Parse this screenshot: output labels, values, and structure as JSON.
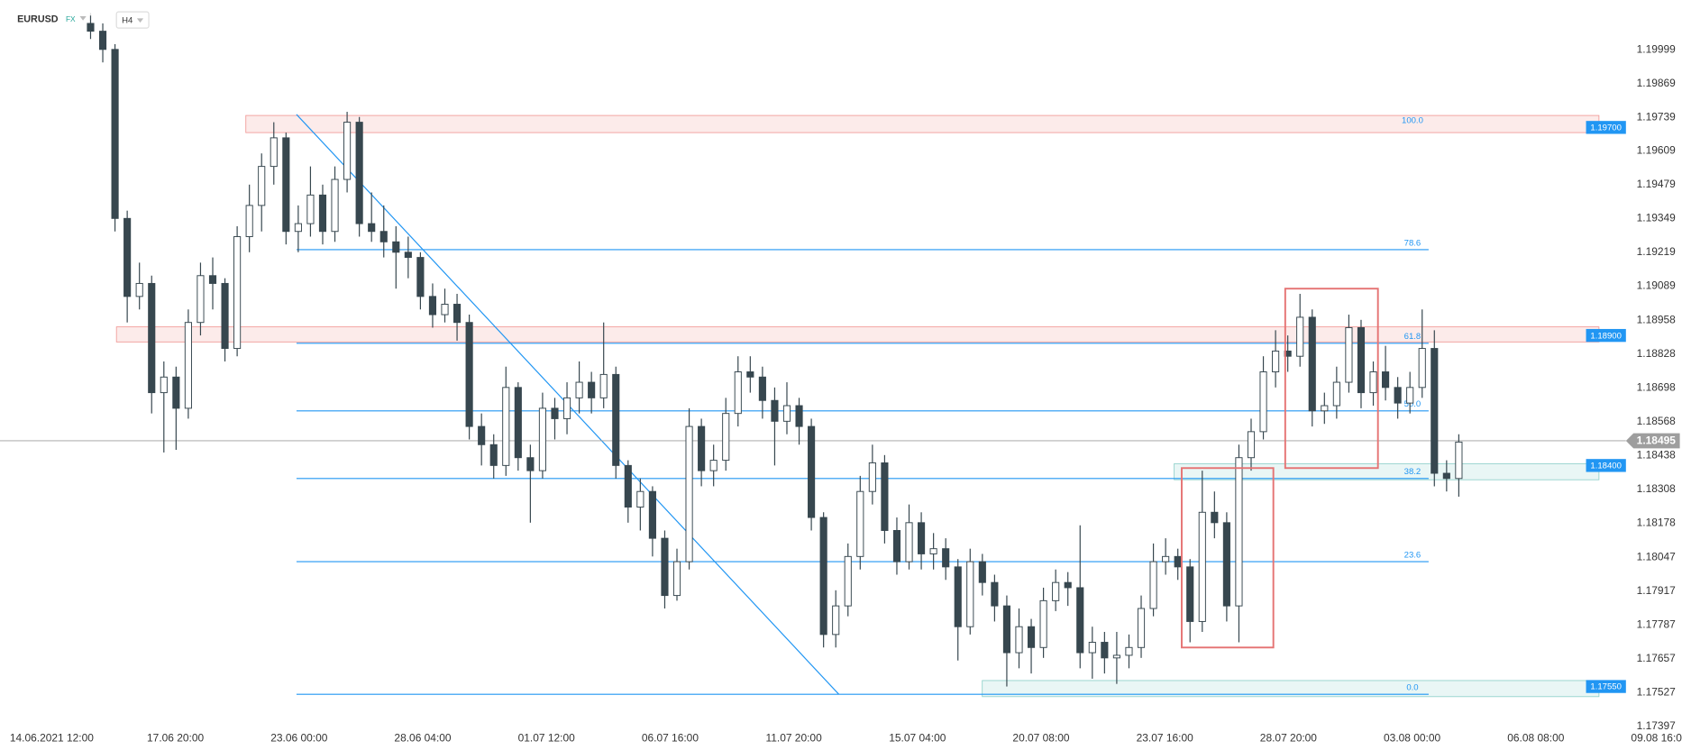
{
  "header": {
    "symbol": "EURUSD",
    "market": "FX",
    "interval": "H4"
  },
  "chart_data": {
    "type": "candlestick",
    "ylim": [
      1.1739,
      1.2019
    ],
    "yticks": [
      1.19999,
      1.19869,
      1.19739,
      1.19609,
      1.19479,
      1.19349,
      1.19219,
      1.19089,
      1.18958,
      1.18828,
      1.18698,
      1.18568,
      1.18438,
      1.18308,
      1.18178,
      1.18047,
      1.17917,
      1.17787,
      1.17657,
      1.17527,
      1.17397
    ],
    "xtick_labels": [
      "14.06.2021 12:00",
      "17.06 20:00",
      "23.06 00:00",
      "28.06 04:00",
      "01.07 12:00",
      "06.07 16:00",
      "11.07 20:00",
      "15.07 04:00",
      "20.07 08:00",
      "23.07 16:00",
      "28.07 20:00",
      "03.08 00:00",
      "06.08 08:00",
      "09.08 16:00"
    ],
    "up_color": "#ffffff",
    "down_color": "#37474f",
    "candles": [
      [
        1.201,
        1.2013,
        1.2004,
        1.2007
      ],
      [
        1.2007,
        1.201,
        1.1995,
        1.2
      ],
      [
        1.2,
        1.2002,
        1.193,
        1.1935
      ],
      [
        1.1935,
        1.1938,
        1.1895,
        1.1905
      ],
      [
        1.1905,
        1.1918,
        1.19,
        1.191
      ],
      [
        1.191,
        1.1913,
        1.186,
        1.1868
      ],
      [
        1.1868,
        1.188,
        1.1845,
        1.1874
      ],
      [
        1.1874,
        1.1878,
        1.1846,
        1.1862
      ],
      [
        1.1862,
        1.19,
        1.1858,
        1.1895
      ],
      [
        1.1895,
        1.1918,
        1.189,
        1.1913
      ],
      [
        1.1913,
        1.192,
        1.19,
        1.191
      ],
      [
        1.191,
        1.1912,
        1.188,
        1.1885
      ],
      [
        1.1885,
        1.1932,
        1.1882,
        1.1928
      ],
      [
        1.1928,
        1.1948,
        1.1922,
        1.194
      ],
      [
        1.194,
        1.196,
        1.193,
        1.1955
      ],
      [
        1.1955,
        1.1972,
        1.1948,
        1.1966
      ],
      [
        1.1966,
        1.1968,
        1.1925,
        1.193
      ],
      [
        1.193,
        1.194,
        1.1922,
        1.1933
      ],
      [
        1.1933,
        1.1955,
        1.1928,
        1.1944
      ],
      [
        1.1944,
        1.1948,
        1.1925,
        1.193
      ],
      [
        1.193,
        1.1955,
        1.1926,
        1.195
      ],
      [
        1.195,
        1.1976,
        1.1945,
        1.1972
      ],
      [
        1.1972,
        1.1974,
        1.1928,
        1.1933
      ],
      [
        1.1933,
        1.1945,
        1.1926,
        1.193
      ],
      [
        1.193,
        1.194,
        1.192,
        1.1926
      ],
      [
        1.1926,
        1.1932,
        1.1908,
        1.1922
      ],
      [
        1.1922,
        1.1928,
        1.1912,
        1.192
      ],
      [
        1.192,
        1.1922,
        1.19,
        1.1905
      ],
      [
        1.1905,
        1.191,
        1.1893,
        1.1898
      ],
      [
        1.1898,
        1.1908,
        1.1895,
        1.1902
      ],
      [
        1.1902,
        1.1906,
        1.1888,
        1.1895
      ],
      [
        1.1895,
        1.1898,
        1.185,
        1.1855
      ],
      [
        1.1855,
        1.186,
        1.184,
        1.1848
      ],
      [
        1.1848,
        1.1852,
        1.1835,
        1.184
      ],
      [
        1.184,
        1.1878,
        1.1836,
        1.187
      ],
      [
        1.187,
        1.1872,
        1.1838,
        1.1843
      ],
      [
        1.1843,
        1.1848,
        1.1818,
        1.1838
      ],
      [
        1.1838,
        1.1868,
        1.1835,
        1.1862
      ],
      [
        1.1862,
        1.1866,
        1.185,
        1.1858
      ],
      [
        1.1858,
        1.1872,
        1.1852,
        1.1866
      ],
      [
        1.1866,
        1.188,
        1.186,
        1.1872
      ],
      [
        1.1872,
        1.1876,
        1.186,
        1.1866
      ],
      [
        1.1866,
        1.1895,
        1.1862,
        1.1875
      ],
      [
        1.1875,
        1.1878,
        1.1835,
        1.184
      ],
      [
        1.184,
        1.1842,
        1.1818,
        1.1824
      ],
      [
        1.1824,
        1.1835,
        1.1815,
        1.183
      ],
      [
        1.183,
        1.1832,
        1.1805,
        1.1812
      ],
      [
        1.1812,
        1.1815,
        1.1785,
        1.179
      ],
      [
        1.179,
        1.1808,
        1.1788,
        1.1803
      ],
      [
        1.1803,
        1.1862,
        1.18,
        1.1855
      ],
      [
        1.1855,
        1.1858,
        1.1832,
        1.1838
      ],
      [
        1.1838,
        1.1848,
        1.1832,
        1.1842
      ],
      [
        1.1842,
        1.1866,
        1.1838,
        1.186
      ],
      [
        1.186,
        1.1882,
        1.1855,
        1.1876
      ],
      [
        1.1876,
        1.1882,
        1.1868,
        1.1874
      ],
      [
        1.1874,
        1.1878,
        1.1858,
        1.1865
      ],
      [
        1.1865,
        1.187,
        1.184,
        1.1857
      ],
      [
        1.1857,
        1.1872,
        1.1852,
        1.1863
      ],
      [
        1.1863,
        1.1866,
        1.1848,
        1.1855
      ],
      [
        1.1855,
        1.1858,
        1.1815,
        1.182
      ],
      [
        1.182,
        1.1822,
        1.177,
        1.1775
      ],
      [
        1.1775,
        1.1792,
        1.177,
        1.1786
      ],
      [
        1.1786,
        1.181,
        1.1782,
        1.1805
      ],
      [
        1.1805,
        1.1836,
        1.18,
        1.183
      ],
      [
        1.183,
        1.1848,
        1.1825,
        1.1841
      ],
      [
        1.1841,
        1.1844,
        1.181,
        1.1815
      ],
      [
        1.1815,
        1.182,
        1.1798,
        1.1803
      ],
      [
        1.1803,
        1.1825,
        1.18,
        1.1818
      ],
      [
        1.1818,
        1.1822,
        1.18,
        1.1806
      ],
      [
        1.1806,
        1.1814,
        1.18,
        1.1808
      ],
      [
        1.1808,
        1.1812,
        1.1796,
        1.1801
      ],
      [
        1.1801,
        1.1804,
        1.1765,
        1.1778
      ],
      [
        1.1778,
        1.1808,
        1.1775,
        1.1803
      ],
      [
        1.1803,
        1.1806,
        1.179,
        1.1795
      ],
      [
        1.1795,
        1.1798,
        1.178,
        1.1786
      ],
      [
        1.1786,
        1.179,
        1.1755,
        1.1768
      ],
      [
        1.1768,
        1.1785,
        1.1762,
        1.1778
      ],
      [
        1.1778,
        1.1781,
        1.176,
        1.177
      ],
      [
        1.177,
        1.1793,
        1.1766,
        1.1788
      ],
      [
        1.1788,
        1.18,
        1.1784,
        1.1795
      ],
      [
        1.1795,
        1.1799,
        1.1786,
        1.1793
      ],
      [
        1.1793,
        1.1817,
        1.1762,
        1.1768
      ],
      [
        1.1768,
        1.1778,
        1.1758,
        1.1772
      ],
      [
        1.1772,
        1.1776,
        1.176,
        1.1766
      ],
      [
        1.1766,
        1.1776,
        1.1756,
        1.1767
      ],
      [
        1.1767,
        1.1775,
        1.1762,
        1.177
      ],
      [
        1.177,
        1.179,
        1.1766,
        1.1785
      ],
      [
        1.1785,
        1.181,
        1.1782,
        1.1803
      ],
      [
        1.1803,
        1.1812,
        1.1798,
        1.1805
      ],
      [
        1.1805,
        1.1808,
        1.1796,
        1.1801
      ],
      [
        1.1801,
        1.1804,
        1.1772,
        1.178
      ],
      [
        1.178,
        1.1838,
        1.1776,
        1.1822
      ],
      [
        1.1822,
        1.183,
        1.1812,
        1.1818
      ],
      [
        1.1818,
        1.1822,
        1.178,
        1.1786
      ],
      [
        1.1786,
        1.1848,
        1.1772,
        1.1843
      ],
      [
        1.1843,
        1.1858,
        1.1838,
        1.1853
      ],
      [
        1.1853,
        1.1882,
        1.185,
        1.1876
      ],
      [
        1.1876,
        1.1892,
        1.187,
        1.1884
      ],
      [
        1.1884,
        1.189,
        1.1876,
        1.1882
      ],
      [
        1.1882,
        1.1906,
        1.1878,
        1.1897
      ],
      [
        1.1897,
        1.19,
        1.1855,
        1.1861
      ],
      [
        1.1861,
        1.1868,
        1.1856,
        1.1863
      ],
      [
        1.1863,
        1.1878,
        1.1858,
        1.1872
      ],
      [
        1.1872,
        1.1898,
        1.1868,
        1.1893
      ],
      [
        1.1893,
        1.1896,
        1.1862,
        1.1868
      ],
      [
        1.1868,
        1.188,
        1.1863,
        1.1876
      ],
      [
        1.1876,
        1.1886,
        1.1865,
        1.187
      ],
      [
        1.187,
        1.1874,
        1.1858,
        1.1864
      ],
      [
        1.1864,
        1.1876,
        1.186,
        1.187
      ],
      [
        1.187,
        1.19,
        1.1866,
        1.1885
      ],
      [
        1.1885,
        1.1892,
        1.1832,
        1.1837
      ],
      [
        1.1837,
        1.1842,
        1.183,
        1.1835
      ],
      [
        1.1835,
        1.1852,
        1.1828,
        1.1849
      ]
    ],
    "zones": [
      {
        "from": 1.19746,
        "to": 1.1968,
        "color": "#e53935",
        "price_label": {
          "value": 1.197,
          "label": "1.19700"
        }
      },
      {
        "from": 1.18933,
        "to": 1.18875,
        "color": "#e53935",
        "price_label": {
          "value": 1.189,
          "label": "1.18900"
        }
      },
      {
        "from": 1.18407,
        "to": 1.18345,
        "color": "#26a69a",
        "price_label": {
          "value": 1.184,
          "label": "1.18400"
        }
      },
      {
        "from": 1.17573,
        "to": 1.17511,
        "color": "#26a69a",
        "price_label": {
          "value": 1.1755,
          "label": "1.17550"
        }
      }
    ],
    "fib_levels": [
      {
        "label": "100.0",
        "price": 1.197,
        "line": false
      },
      {
        "label": "78.6",
        "price": 1.1923,
        "line": true
      },
      {
        "label": "61.8",
        "price": 1.1887,
        "line": true
      },
      {
        "label": "50.0",
        "price": 1.1861,
        "line": true
      },
      {
        "label": "38.2",
        "price": 1.1835,
        "line": true
      },
      {
        "label": "23.6",
        "price": 1.1803,
        "line": true
      },
      {
        "label": "0.0",
        "price": 1.1752,
        "line": true
      }
    ],
    "trend_line": [
      1.1975,
      1.1752
    ],
    "boxes": [
      [
        1.1839,
        1.177
      ],
      [
        1.1908,
        1.1839
      ]
    ],
    "current_price": {
      "value": 1.18495,
      "label": "1.18495"
    }
  }
}
